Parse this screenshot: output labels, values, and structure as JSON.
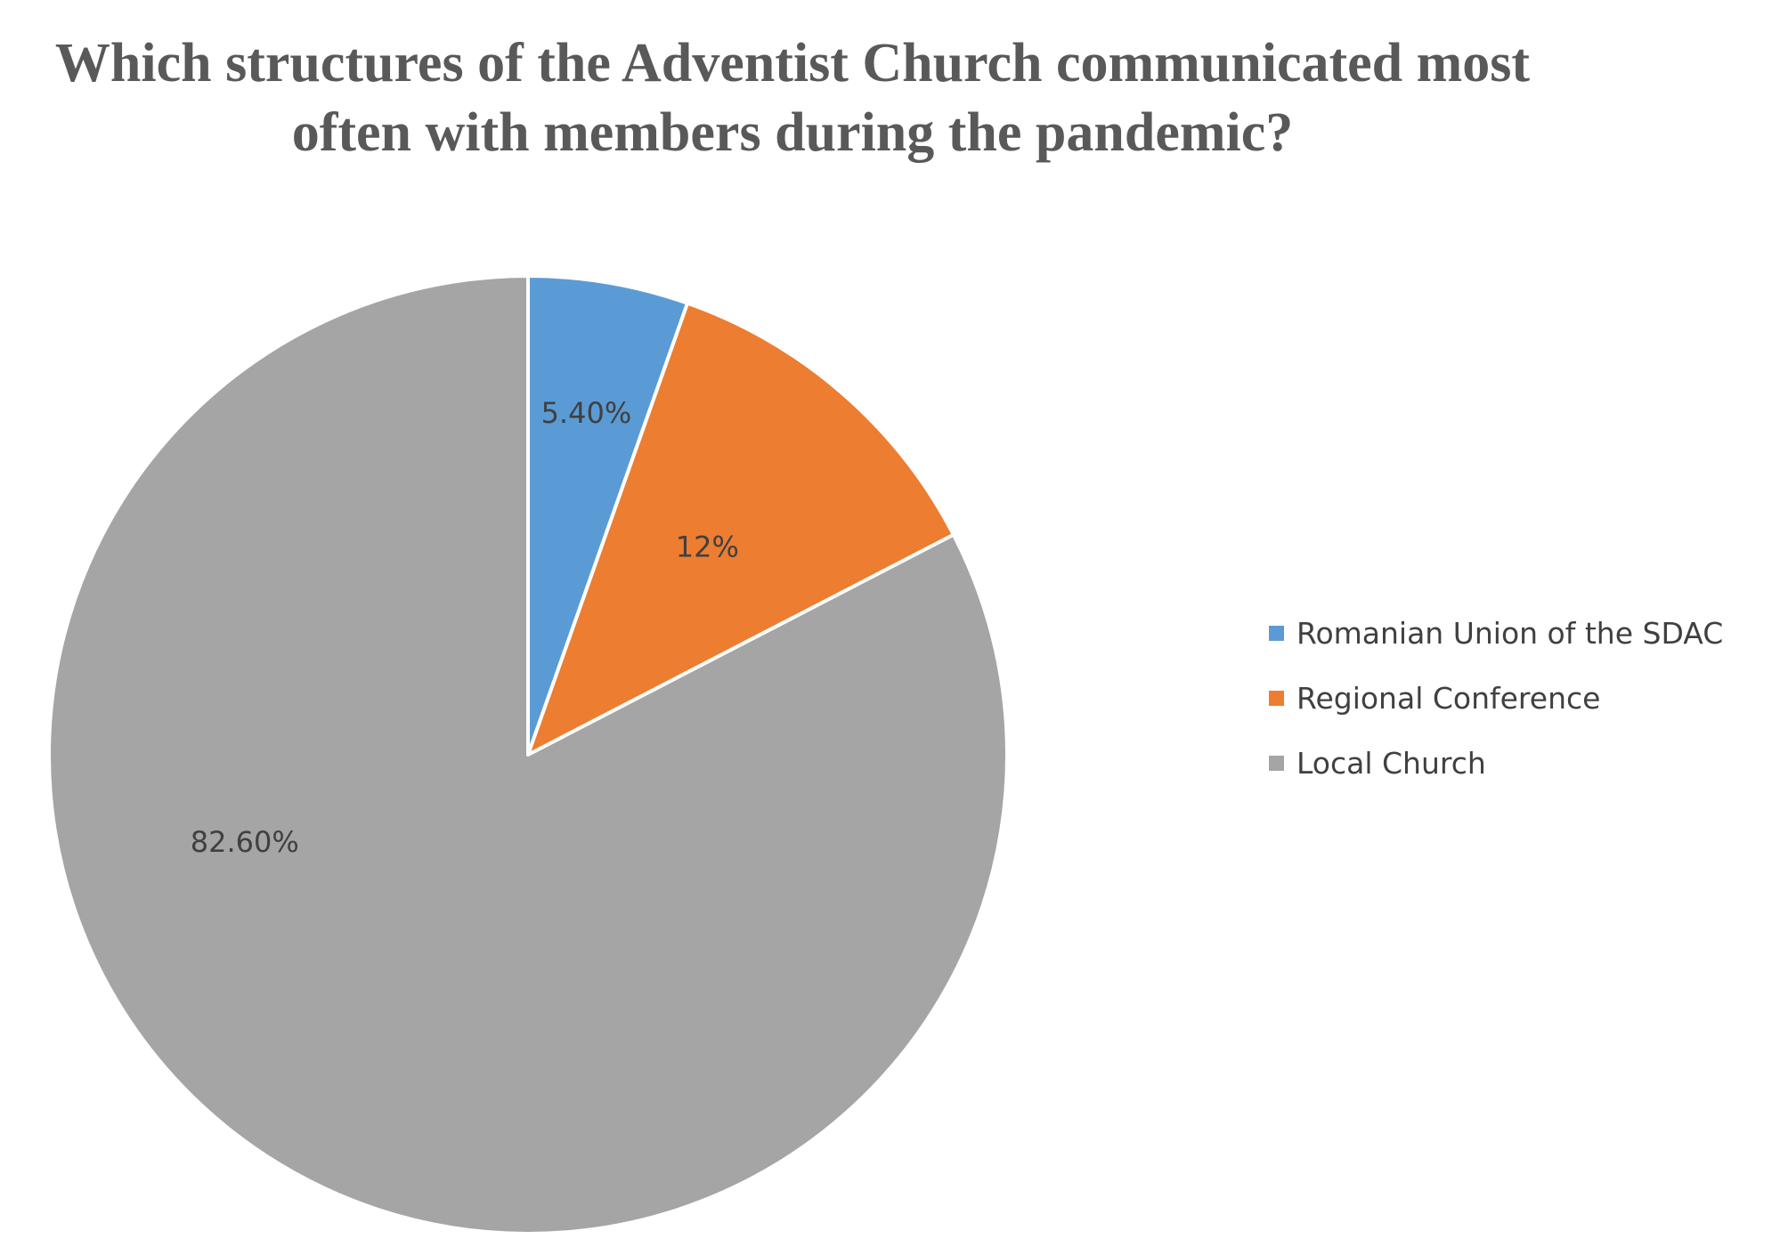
{
  "chart_data": {
    "type": "pie",
    "title_lines": [
      "Which structures of the Adventist Church communicated most",
      "often with members during the pandemic?"
    ],
    "categories": [
      "Romanian Union of the SDAC",
      "Regional Conference",
      "Local Church"
    ],
    "values": [
      5.4,
      12,
      82.6
    ],
    "data_labels": [
      "5.40%",
      "12%",
      "82.60%"
    ],
    "colors": [
      "#5B9BD5",
      "#ED7D31",
      "#A5A5A5"
    ],
    "legend_position": "right",
    "start_angle": "12 o'clock, clockwise"
  }
}
